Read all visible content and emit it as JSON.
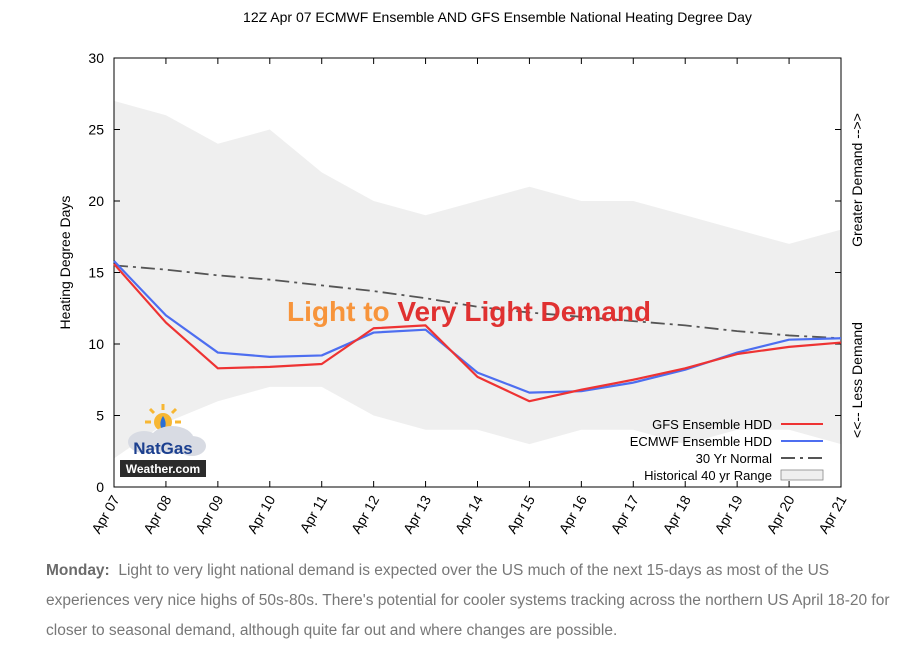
{
  "chart_data": {
    "type": "line",
    "title": "12Z Apr 07 ECMWF Ensemble AND GFS Ensemble National Heating Degree Day",
    "ylabel": "Heating Degree Days",
    "y2label_top": "Greater Demand -->>",
    "y2label_bottom": "<<-- Less Demand",
    "ylim": [
      0,
      30
    ],
    "yticks": [
      "0",
      "5",
      "10",
      "15",
      "20",
      "25",
      "30"
    ],
    "categories": [
      "Apr 07",
      "Apr 08",
      "Apr 09",
      "Apr 10",
      "Apr 11",
      "Apr 12",
      "Apr 13",
      "Apr 14",
      "Apr 15",
      "Apr 16",
      "Apr 17",
      "Apr 18",
      "Apr 19",
      "Apr 20",
      "Apr 21"
    ],
    "series": [
      {
        "name": "GFS Ensemble HDD",
        "color": "#ee3333",
        "style": "solid",
        "values": [
          15.6,
          11.5,
          8.3,
          8.4,
          8.6,
          11.1,
          11.3,
          7.7,
          6.0,
          6.8,
          7.5,
          8.3,
          9.3,
          9.8,
          10.1
        ]
      },
      {
        "name": "ECMWF Ensemble HDD",
        "color": "#4d6ef0",
        "style": "solid",
        "values": [
          15.8,
          12.0,
          9.4,
          9.1,
          9.2,
          10.8,
          11.0,
          8.0,
          6.6,
          6.7,
          7.3,
          8.2,
          9.4,
          10.3,
          10.4
        ]
      },
      {
        "name": "30 Yr Normal",
        "color": "#555555",
        "style": "dashdot",
        "values": [
          15.5,
          15.2,
          14.8,
          14.5,
          14.1,
          13.7,
          13.2,
          12.6,
          12.2,
          11.9,
          11.6,
          11.3,
          10.9,
          10.6,
          10.4
        ]
      }
    ],
    "range": {
      "name": "Historical 40 yr Range",
      "color": "#efefef",
      "upper": [
        27.0,
        26.0,
        24.0,
        25.0,
        22.0,
        20.0,
        19.0,
        20.0,
        21.0,
        20.0,
        20.0,
        19.0,
        18.0,
        17.0,
        18.0
      ],
      "lower": [
        2.0,
        4.5,
        6.0,
        7.0,
        7.0,
        5.0,
        4.0,
        4.0,
        3.0,
        4.0,
        4.0,
        3.0,
        4.0,
        4.0,
        3.0
      ]
    },
    "annotation": {
      "part1": "Light to ",
      "part2": "Very Light Demand",
      "color1": "#f7943b",
      "color2": "#e03131"
    },
    "grid": false,
    "legend_placement": "bottom-right"
  },
  "logo": {
    "line1": "NatGas",
    "line2": "Weather.com"
  },
  "caption": {
    "day": "Monday:",
    "text": "Light to very light national demand is expected over the US much of the next 15-days as most of the US experiences very nice highs of 50s-80s. There's potential for cooler systems tracking across the northern US April 18-20 for closer to seasonal demand, although quite far out and where changes are possible."
  }
}
